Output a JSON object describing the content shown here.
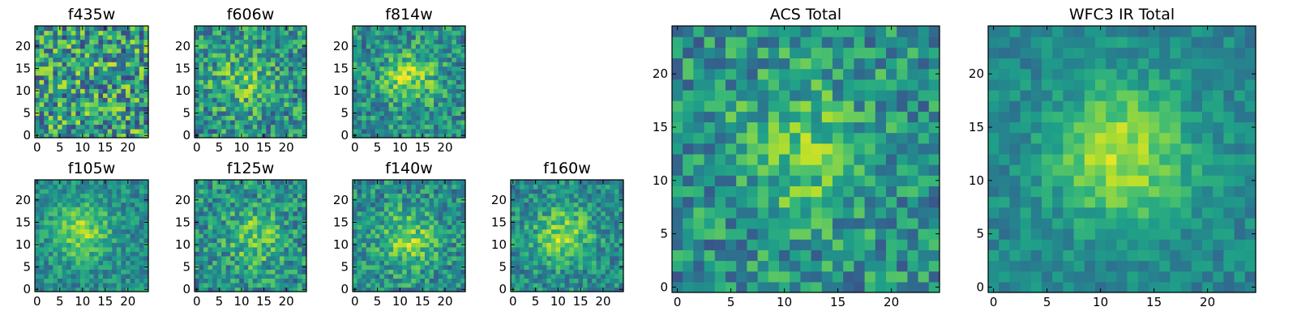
{
  "chart_data": [
    {
      "type": "heatmap",
      "title": "f435w",
      "xlim": [
        0,
        24
      ],
      "ylim": [
        0,
        24
      ],
      "xticks": [
        0,
        5,
        10,
        15,
        20
      ],
      "yticks": [
        0,
        5,
        10,
        15,
        20
      ],
      "colormap": "viridis",
      "grid": false,
      "source_center": [
        12,
        13
      ],
      "source_strength": 0.05,
      "noise": 0.45
    },
    {
      "type": "heatmap",
      "title": "f606w",
      "xlim": [
        0,
        24
      ],
      "ylim": [
        0,
        24
      ],
      "xticks": [
        0,
        5,
        10,
        15,
        20
      ],
      "yticks": [
        0,
        5,
        10,
        15,
        20
      ],
      "colormap": "viridis",
      "grid": false,
      "source_center": [
        10,
        12
      ],
      "source_strength": 0.35,
      "noise": 0.35
    },
    {
      "type": "heatmap",
      "title": "f814w",
      "xlim": [
        0,
        24
      ],
      "ylim": [
        0,
        24
      ],
      "xticks": [
        0,
        5,
        10,
        15,
        20
      ],
      "yticks": [
        0,
        5,
        10,
        15,
        20
      ],
      "colormap": "viridis",
      "grid": false,
      "source_center": [
        12,
        13
      ],
      "source_strength": 0.55,
      "noise": 0.3
    },
    {
      "type": "heatmap",
      "title": "f105w",
      "xlim": [
        0,
        24
      ],
      "ylim": [
        0,
        24
      ],
      "xticks": [
        0,
        5,
        10,
        15,
        20
      ],
      "yticks": [
        0,
        5,
        10,
        15,
        20
      ],
      "colormap": "viridis",
      "grid": false,
      "source_center": [
        10,
        13
      ],
      "source_strength": 0.6,
      "noise": 0.22
    },
    {
      "type": "heatmap",
      "title": "f125w",
      "xlim": [
        0,
        24
      ],
      "ylim": [
        0,
        24
      ],
      "xticks": [
        0,
        5,
        10,
        15,
        20
      ],
      "yticks": [
        0,
        5,
        10,
        15,
        20
      ],
      "colormap": "viridis",
      "grid": false,
      "source_center": [
        13,
        12
      ],
      "source_strength": 0.5,
      "noise": 0.3
    },
    {
      "type": "heatmap",
      "title": "f140w",
      "xlim": [
        0,
        24
      ],
      "ylim": [
        0,
        24
      ],
      "xticks": [
        0,
        5,
        10,
        15,
        20
      ],
      "yticks": [
        0,
        5,
        10,
        15,
        20
      ],
      "colormap": "viridis",
      "grid": false,
      "source_center": [
        12,
        11
      ],
      "source_strength": 0.55,
      "noise": 0.28
    },
    {
      "type": "heatmap",
      "title": "f160w",
      "xlim": [
        0,
        24
      ],
      "ylim": [
        0,
        24
      ],
      "xticks": [
        0,
        5,
        10,
        15,
        20
      ],
      "yticks": [
        0,
        5,
        10,
        15,
        20
      ],
      "colormap": "viridis",
      "grid": false,
      "source_center": [
        11,
        12
      ],
      "source_strength": 0.6,
      "noise": 0.25
    },
    {
      "type": "heatmap",
      "title": "ACS Total",
      "xlim": [
        0,
        24
      ],
      "ylim": [
        0,
        24
      ],
      "xticks": [
        0,
        5,
        10,
        15,
        20
      ],
      "yticks": [
        0,
        5,
        10,
        15,
        20
      ],
      "colormap": "viridis",
      "grid": false,
      "source_center": [
        12,
        13
      ],
      "source_strength": 0.45,
      "noise": 0.3
    },
    {
      "type": "heatmap",
      "title": "WFC3 IR Total",
      "xlim": [
        0,
        24
      ],
      "ylim": [
        0,
        24
      ],
      "xticks": [
        0,
        5,
        10,
        15,
        20
      ],
      "yticks": [
        0,
        5,
        10,
        15,
        20
      ],
      "colormap": "viridis",
      "grid": false,
      "source_center": [
        12,
        12.5
      ],
      "source_strength": 0.75,
      "noise": 0.15
    }
  ]
}
